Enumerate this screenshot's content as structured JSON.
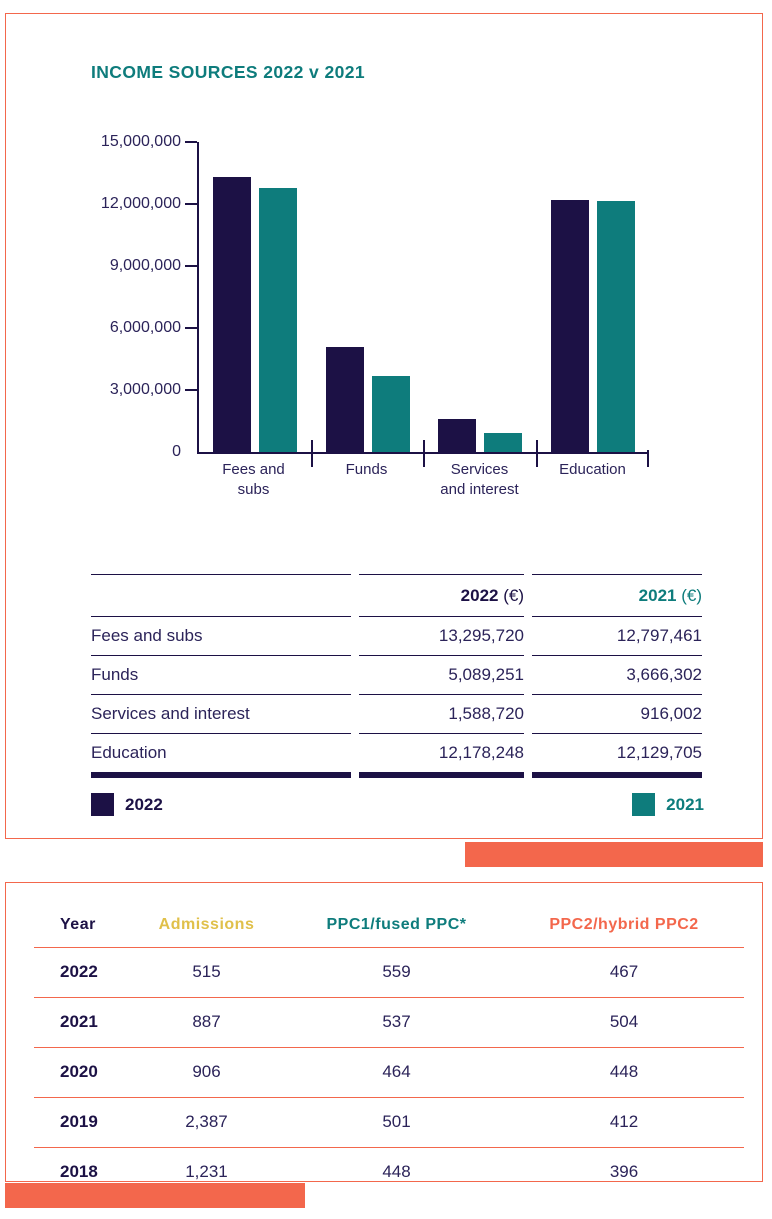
{
  "colors": {
    "navy": "#1c1145",
    "navy_text": "#2b2359",
    "teal": "#0e7c7c",
    "coral": "#f3674c",
    "gold": "#e0c04a"
  },
  "chart_data": {
    "type": "bar",
    "title": "INCOME SOURCES 2022 v 2021",
    "categories": [
      "Fees and subs",
      "Funds",
      "Services and interest",
      "Education"
    ],
    "category_label_lines": [
      [
        "Fees and",
        "subs"
      ],
      [
        "Funds"
      ],
      [
        "Services",
        "and interest"
      ],
      [
        "Education"
      ]
    ],
    "series": [
      {
        "name": "2022",
        "color": "#1c1145",
        "values": [
          13295720,
          5089251,
          1588720,
          12178248
        ]
      },
      {
        "name": "2021",
        "color": "#0e7c7c",
        "values": [
          12797461,
          3666302,
          916002,
          12129705
        ]
      }
    ],
    "xlabel": "",
    "ylabel": "",
    "ylim": [
      0,
      15000000
    ],
    "ytick_values": [
      0,
      3000000,
      6000000,
      9000000,
      12000000,
      15000000
    ],
    "ytick_labels": [
      "0",
      "3,000,000",
      "6,000,000",
      "9,000,000",
      "12,000,000",
      "15,000,000"
    ],
    "grid": false,
    "legend_position": "bottom, 2022 left / 2021 right"
  },
  "income_table": {
    "headers": [
      {
        "year": "2022",
        "unit": " (€)"
      },
      {
        "year": "2021",
        "unit": " (€)"
      }
    ],
    "rows": [
      {
        "label": "Fees and subs",
        "y2022": "13,295,720",
        "y2021": "12,797,461"
      },
      {
        "label": "Funds",
        "y2022": "5,089,251",
        "y2021": "3,666,302"
      },
      {
        "label": "Services and interest",
        "y2022": "1,588,720",
        "y2021": "916,002"
      },
      {
        "label": "Education",
        "y2022": "12,178,248",
        "y2021": "12,129,705"
      }
    ]
  },
  "legend": [
    {
      "label": "2022",
      "color": "#1c1145"
    },
    {
      "label": "2021",
      "color": "#0e7c7c"
    }
  ],
  "admissions_table": {
    "headers": [
      {
        "label": "Year",
        "color": "#1c1145"
      },
      {
        "label": "Admissions",
        "color": "#e0c04a"
      },
      {
        "label": "PPC1/fused PPC*",
        "color": "#0e7c7c"
      },
      {
        "label": "PPC2/hybrid PPC2",
        "color": "#f3674c"
      }
    ],
    "rows": [
      {
        "year": "2022",
        "admissions": "515",
        "ppc1": "559",
        "ppc2": "467"
      },
      {
        "year": "2021",
        "admissions": "887",
        "ppc1": "537",
        "ppc2": "504"
      },
      {
        "year": "2020",
        "admissions": "906",
        "ppc1": "464",
        "ppc2": "448"
      },
      {
        "year": "2019",
        "admissions": "2,387",
        "ppc1": "501",
        "ppc2": "412"
      },
      {
        "year": "2018",
        "admissions": "1,231",
        "ppc1": "448",
        "ppc2": "396"
      }
    ]
  }
}
